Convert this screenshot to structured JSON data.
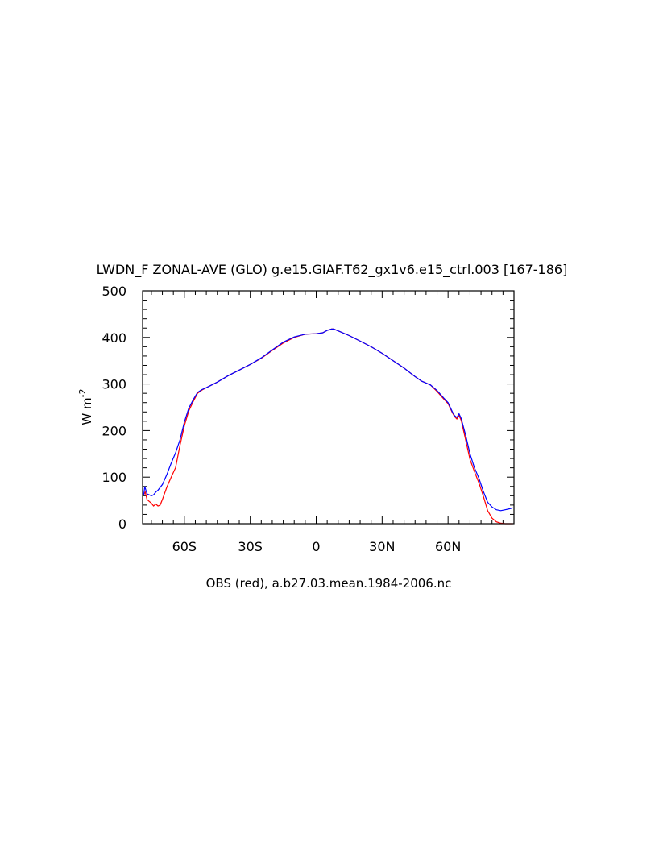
{
  "chart_data": {
    "type": "line",
    "title": "LWDN_F ZONAL-AVE (GLO) g.e15.GIAF.T62_gx1v6.e15_ctrl.003 [167-186]",
    "xlabel": "OBS (red), a.b27.03.mean.1984-2006.nc",
    "ylabel": "W m",
    "ylabel_superscript": "-2",
    "xlim": [
      -79,
      90
    ],
    "ylim": [
      0,
      500
    ],
    "x_ticks": [
      -60,
      -30,
      0,
      30,
      60
    ],
    "x_tick_labels": [
      "60S",
      "30S",
      "0",
      "30N",
      "60N"
    ],
    "y_ticks": [
      0,
      100,
      200,
      300,
      400,
      500
    ],
    "y_tick_labels": [
      "0",
      "100",
      "200",
      "300",
      "400",
      "500"
    ],
    "grid": false,
    "series": [
      {
        "color": "#ff0000",
        "x": [
          -78.5,
          -77.8,
          -77,
          -76,
          -75,
          -74,
          -73,
          -72,
          -71,
          -70,
          -68,
          -66,
          -64,
          -62,
          -60,
          -58,
          -56,
          -54,
          -52,
          -50,
          -45,
          -40,
          -35,
          -30,
          -25,
          -20,
          -15,
          -10,
          -5,
          0,
          3,
          5,
          7,
          8,
          10,
          15,
          20,
          25,
          30,
          35,
          40,
          45,
          48,
          50,
          52,
          55,
          58,
          60,
          61,
          62,
          63,
          64,
          65,
          66,
          68,
          70,
          72,
          74,
          76,
          78,
          80,
          82,
          84,
          86,
          88,
          89.5
        ],
        "values": [
          62,
          68,
          52,
          48,
          44,
          38,
          42,
          38,
          40,
          52,
          78,
          100,
          120,
          168,
          210,
          242,
          262,
          280,
          287,
          292,
          304,
          318,
          330,
          342,
          355,
          372,
          388,
          400,
          407,
          408,
          410,
          415,
          418,
          418,
          414,
          404,
          392,
          380,
          366,
          350,
          334,
          316,
          306,
          302,
          298,
          284,
          268,
          258,
          248,
          238,
          230,
          225,
          232,
          222,
          180,
          138,
          112,
          88,
          60,
          28,
          12,
          4,
          1,
          0,
          0,
          0
        ]
      },
      {
        "color": "#0000ff",
        "x": [
          -78.5,
          -78,
          -77.5,
          -77,
          -76,
          -75,
          -74,
          -73,
          -72,
          -70,
          -68,
          -66,
          -64,
          -62,
          -60,
          -58,
          -56,
          -54,
          -52,
          -50,
          -45,
          -40,
          -35,
          -30,
          -25,
          -20,
          -15,
          -10,
          -5,
          0,
          3,
          5,
          7,
          8,
          10,
          15,
          20,
          25,
          30,
          35,
          40,
          45,
          48,
          50,
          52,
          55,
          58,
          60,
          61,
          62,
          63,
          64,
          65,
          66,
          68,
          70,
          72,
          74,
          76,
          78,
          80,
          82,
          84,
          86,
          88,
          89.5
        ],
        "values": [
          62,
          80,
          72,
          64,
          62,
          60,
          62,
          68,
          72,
          84,
          105,
          130,
          152,
          180,
          218,
          248,
          266,
          282,
          288,
          292,
          304,
          318,
          330,
          342,
          356,
          373,
          390,
          401,
          407,
          408,
          410,
          415,
          418,
          418,
          414,
          404,
          392,
          380,
          366,
          350,
          334,
          316,
          306,
          302,
          298,
          286,
          270,
          260,
          250,
          240,
          232,
          228,
          236,
          226,
          190,
          150,
          120,
          98,
          70,
          46,
          36,
          30,
          28,
          30,
          32,
          34
        ]
      }
    ]
  }
}
